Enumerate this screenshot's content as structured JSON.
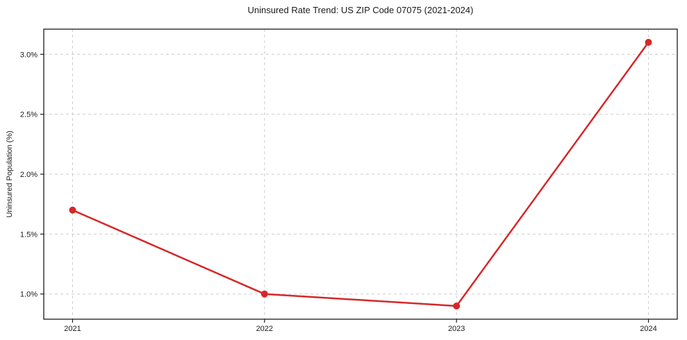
{
  "page": {
    "background": "#ffffff"
  },
  "chart_data": {
    "type": "line",
    "title": "Uninsured Rate Trend: US ZIP Code 07075 (2021-2024)",
    "xlabel": "",
    "ylabel": "Uninsured Population (%)",
    "x": [
      2021,
      2022,
      2023,
      2024
    ],
    "series": [
      {
        "name": "uninsured-rate",
        "values": [
          1.7,
          1.0,
          0.9,
          3.1
        ],
        "color": "#d62728",
        "line_width": 2.5,
        "marker": "circle",
        "marker_radius": 5
      }
    ],
    "xticks": {
      "values": [
        2021,
        2022,
        2023,
        2024
      ],
      "labels": [
        "2021",
        "2022",
        "2023",
        "2024"
      ]
    },
    "yticks": {
      "values": [
        1.0,
        1.5,
        2.0,
        2.5,
        3.0
      ],
      "labels": [
        "1.0%",
        "1.5%",
        "2.0%",
        "2.5%",
        "3.0%"
      ]
    },
    "xlim": [
      2020.85,
      2024.15
    ],
    "ylim": [
      0.79,
      3.21
    ],
    "grid": true,
    "grid_color": "#cccccc",
    "grid_dash": "4 4",
    "spine_color": "#1a1a1a",
    "legend": "none"
  }
}
